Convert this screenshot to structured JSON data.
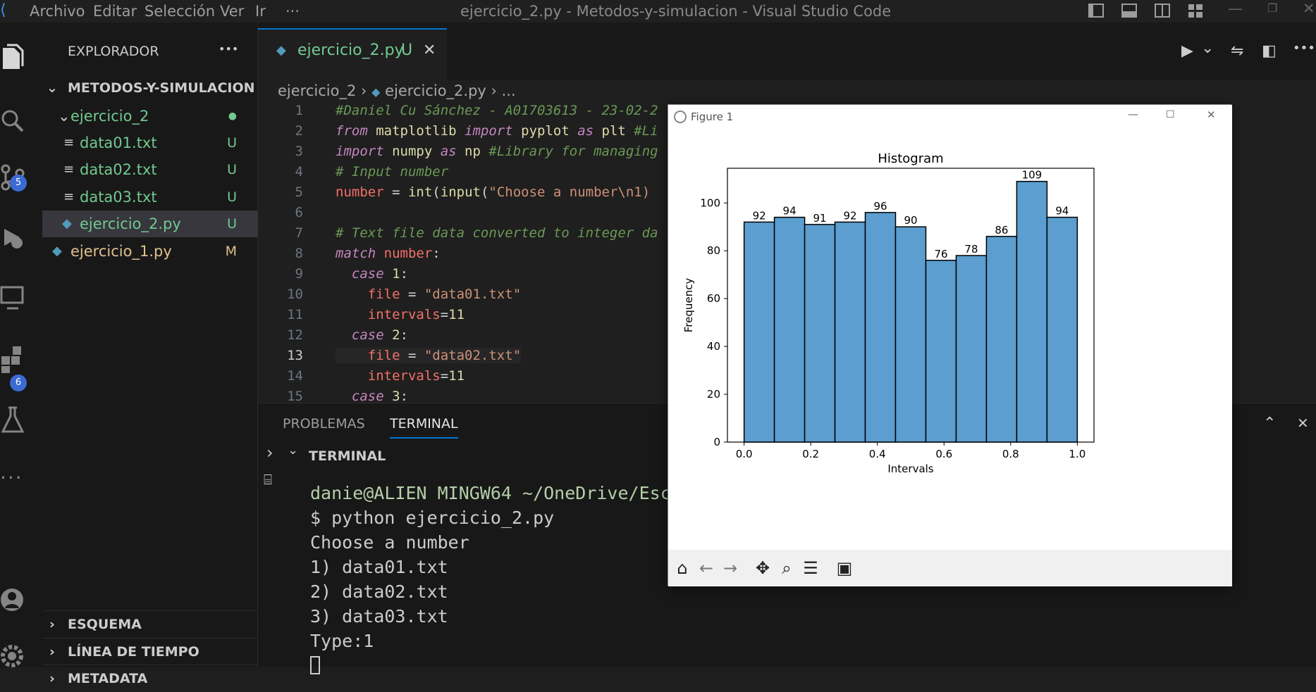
{
  "window": {
    "title": "ejercicio_2.py - Metodos-y-simulacion - Visual Studio Code"
  },
  "menu": [
    "Archivo",
    "Editar",
    "Selección",
    "Ver",
    "Ir",
    "···"
  ],
  "activity": {
    "scm_badge": "5",
    "ext_badge": "6"
  },
  "sidebar": {
    "title": "EXPLORADOR",
    "more": "•••",
    "root": "METODOS-Y-SIMULACION",
    "items": [
      {
        "label": "ejercicio_2",
        "mark": "●"
      },
      {
        "label": "data01.txt",
        "mark": "U"
      },
      {
        "label": "data02.txt",
        "mark": "U"
      },
      {
        "label": "data03.txt",
        "mark": "U"
      },
      {
        "label": "ejercicio_2.py",
        "mark": "U"
      },
      {
        "label": "ejercicio_1.py",
        "mark": "M"
      }
    ],
    "sections": [
      "ESQUEMA",
      "LÍNEA DE TIEMPO",
      "METADATA"
    ]
  },
  "editor": {
    "tab": {
      "label": "ejercicio_2.py",
      "status": "U"
    },
    "breadcrumb": {
      "folder": "ejercicio_2",
      "file": "ejercicio_2.py",
      "more": "..."
    },
    "line_numbers": [
      "1",
      "2",
      "3",
      "4",
      "5",
      "6",
      "7",
      "8",
      "9",
      "10",
      "11",
      "12",
      "13",
      "14",
      "15"
    ]
  },
  "panel": {
    "tabs": [
      "PROBLEMAS",
      "TERMINAL"
    ],
    "section": "TERMINAL",
    "lines": [
      "danie@ALIEN MINGW64 ~/OneDrive/Esc",
      "$ python ejercicio_2.py",
      "Choose a number",
      "1) data01.txt",
      "2) data02.txt",
      "3) data03.txt",
      "Type:1"
    ]
  },
  "figure": {
    "title": "Figure 1"
  },
  "chart_data": {
    "type": "bar",
    "title": "Histogram",
    "xlabel": "Intervals",
    "ylabel": "Frequency",
    "bin_edges": [
      0.0,
      0.0909,
      0.1818,
      0.2727,
      0.3636,
      0.4545,
      0.5455,
      0.6364,
      0.7273,
      0.8182,
      0.9091,
      1.0
    ],
    "values": [
      92,
      94,
      91,
      92,
      96,
      90,
      76,
      78,
      86,
      109,
      94
    ],
    "xticks": [
      "0.0",
      "0.2",
      "0.4",
      "0.6",
      "0.8",
      "1.0"
    ],
    "yticks": [
      "0",
      "20",
      "40",
      "60",
      "80",
      "100"
    ],
    "xlim": [
      -0.05,
      1.05
    ],
    "ylim": [
      0,
      114.5
    ],
    "color": "#5b9ecf"
  }
}
